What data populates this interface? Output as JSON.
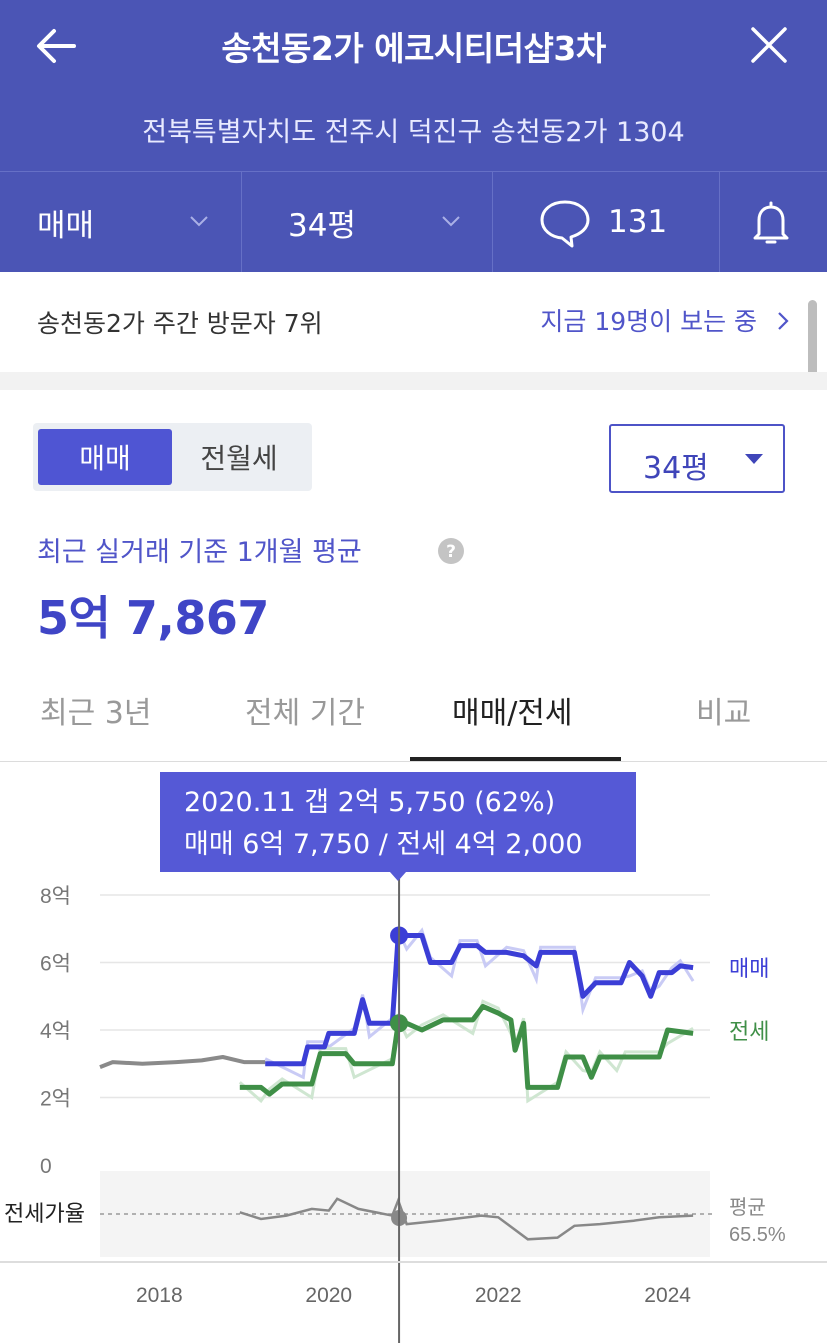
{
  "header": {
    "title": "송천동2가 에코시티더샵3차",
    "address": "전북특별자치도 전주시 덕진구 송천동2가 1304",
    "trade_select": "매매",
    "size_select": "34평",
    "comment_count": "131"
  },
  "visitor": {
    "rank_text": "송천동2가 주간 방문자 7위",
    "viewing_text": "지금 19명이 보는 중"
  },
  "filters": {
    "segment": [
      "매매",
      "전월세"
    ],
    "size_value": "34평"
  },
  "summary": {
    "label": "최근 실거래 기준 1개월 평균",
    "price": "5억 7,867"
  },
  "period_tabs": [
    "최근 3년",
    "전체 기간",
    "매매/전세",
    "비교"
  ],
  "tooltip": {
    "line1": "2020.11  갭 2억 5,750 (62%)",
    "line2": "매매 6억 7,750 / 전세 4억 2,000"
  },
  "colors": {
    "header": "#4b55b5",
    "accent": "#4f55d3",
    "sale": "#3b3ed6",
    "jeonse": "#3f8f47",
    "history": "#8a8a8a"
  },
  "chart_data": {
    "type": "line",
    "y_unit": "억",
    "y_ticks": [
      "8억",
      "6억",
      "4억",
      "2억",
      "0"
    ],
    "ylim": [
      0,
      8
    ],
    "x_ticks": [
      "2018",
      "2020",
      "2022",
      "2024"
    ],
    "xlim": [
      2017.3,
      2024.5
    ],
    "ratio_label": "전세가율",
    "ratio_avg_label": "평균",
    "ratio_avg_value": "65.5%",
    "series": [
      {
        "name": "매매",
        "color": "#3b3ed6",
        "points": [
          [
            2019.25,
            3.0
          ],
          [
            2019.7,
            3.0
          ],
          [
            2019.75,
            3.5
          ],
          [
            2019.95,
            3.5
          ],
          [
            2020.0,
            3.9
          ],
          [
            2020.3,
            3.9
          ],
          [
            2020.4,
            4.9
          ],
          [
            2020.48,
            4.2
          ],
          [
            2020.75,
            4.2
          ],
          [
            2020.82,
            6.8
          ],
          [
            2020.92,
            6.8
          ],
          [
            2021.1,
            6.8
          ],
          [
            2021.2,
            6.0
          ],
          [
            2021.45,
            6.0
          ],
          [
            2021.55,
            6.5
          ],
          [
            2021.75,
            6.5
          ],
          [
            2021.85,
            6.3
          ],
          [
            2022.1,
            6.3
          ],
          [
            2022.3,
            6.2
          ],
          [
            2022.45,
            5.9
          ],
          [
            2022.5,
            6.3
          ],
          [
            2022.9,
            6.3
          ],
          [
            2023.0,
            5.0
          ],
          [
            2023.15,
            5.4
          ],
          [
            2023.45,
            5.4
          ],
          [
            2023.55,
            6.0
          ],
          [
            2023.7,
            5.6
          ],
          [
            2023.8,
            5.0
          ],
          [
            2023.9,
            5.7
          ],
          [
            2024.05,
            5.7
          ],
          [
            2024.15,
            5.9
          ],
          [
            2024.3,
            5.85
          ]
        ]
      },
      {
        "name": "전세",
        "color": "#3f8f47",
        "points": [
          [
            2018.95,
            2.3
          ],
          [
            2019.2,
            2.3
          ],
          [
            2019.3,
            2.1
          ],
          [
            2019.45,
            2.4
          ],
          [
            2019.8,
            2.4
          ],
          [
            2019.9,
            3.3
          ],
          [
            2020.2,
            3.3
          ],
          [
            2020.3,
            3.0
          ],
          [
            2020.75,
            3.0
          ],
          [
            2020.82,
            4.2
          ],
          [
            2020.92,
            4.2
          ],
          [
            2021.1,
            4.0
          ],
          [
            2021.35,
            4.3
          ],
          [
            2021.7,
            4.3
          ],
          [
            2021.82,
            4.7
          ],
          [
            2022.0,
            4.5
          ],
          [
            2022.15,
            4.3
          ],
          [
            2022.2,
            3.4
          ],
          [
            2022.3,
            4.2
          ],
          [
            2022.35,
            2.3
          ],
          [
            2022.7,
            2.3
          ],
          [
            2022.8,
            3.2
          ],
          [
            2023.0,
            3.2
          ],
          [
            2023.1,
            2.6
          ],
          [
            2023.2,
            3.2
          ],
          [
            2023.4,
            3.2
          ],
          [
            2023.5,
            3.2
          ],
          [
            2023.9,
            3.2
          ],
          [
            2024.0,
            4.0
          ],
          [
            2024.3,
            3.9
          ]
        ]
      },
      {
        "name": "과거",
        "color": "#8a8a8a",
        "points": [
          [
            2017.3,
            2.9
          ],
          [
            2017.45,
            3.05
          ],
          [
            2017.8,
            3.0
          ],
          [
            2018.2,
            3.05
          ],
          [
            2018.5,
            3.1
          ],
          [
            2018.75,
            3.2
          ],
          [
            2019.0,
            3.05
          ],
          [
            2019.25,
            3.05
          ]
        ]
      }
    ],
    "ratio_series": [
      [
        2018.95,
        -1.4
      ],
      [
        2019.2,
        -1.6
      ],
      [
        2019.5,
        -1.5
      ],
      [
        2019.8,
        -1.3
      ],
      [
        2020.0,
        -1.35
      ],
      [
        2020.1,
        -1.0
      ],
      [
        2020.35,
        -1.3
      ],
      [
        2020.75,
        -1.5
      ],
      [
        2020.82,
        -1.05
      ],
      [
        2020.92,
        -1.75
      ],
      [
        2021.3,
        -1.65
      ],
      [
        2021.8,
        -1.5
      ],
      [
        2022.0,
        -1.55
      ],
      [
        2022.35,
        -2.2
      ],
      [
        2022.7,
        -2.15
      ],
      [
        2022.9,
        -1.8
      ],
      [
        2023.2,
        -1.75
      ],
      [
        2023.6,
        -1.65
      ],
      [
        2023.9,
        -1.55
      ],
      [
        2024.3,
        -1.5
      ]
    ],
    "highlight": {
      "x": 2020.83,
      "sale": 6.8,
      "jeonse": 4.2
    }
  }
}
